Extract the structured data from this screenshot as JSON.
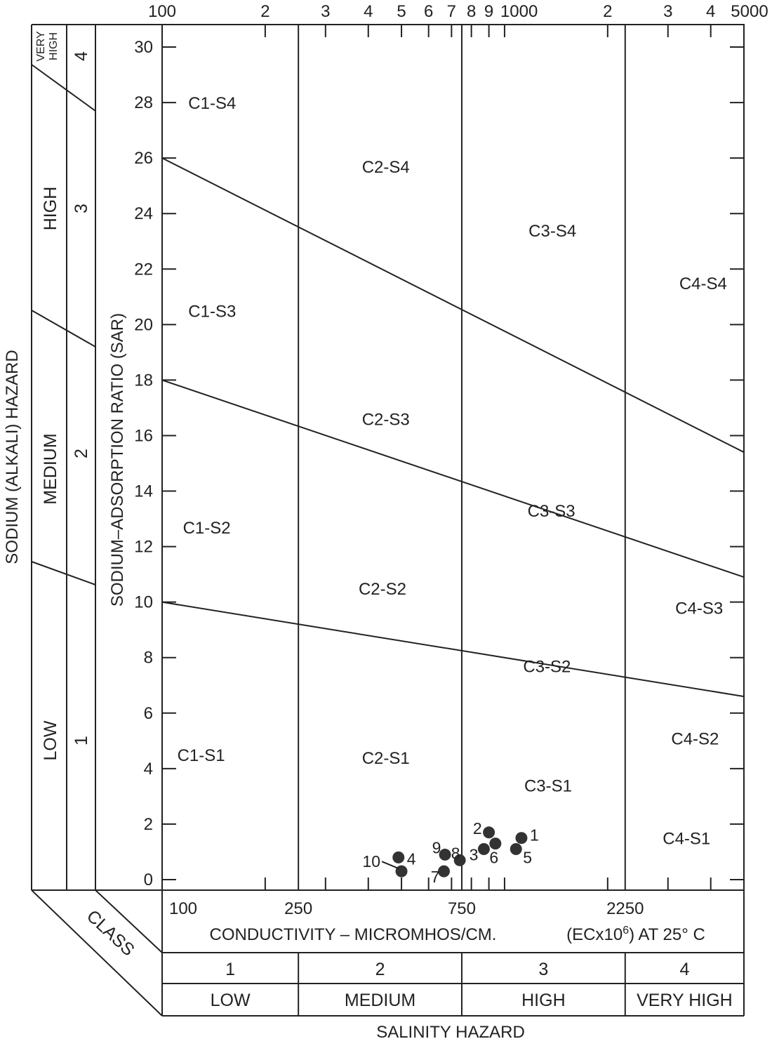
{
  "chart_data": {
    "type": "scatter",
    "x_scale": "log",
    "xlim": [
      100,
      5000
    ],
    "ylim": [
      0,
      31.5
    ],
    "top_ticks": [
      {
        "v": 100,
        "label": "100"
      },
      {
        "v": 200,
        "label": "2"
      },
      {
        "v": 300,
        "label": "3"
      },
      {
        "v": 400,
        "label": "4"
      },
      {
        "v": 500,
        "label": "5"
      },
      {
        "v": 600,
        "label": "6"
      },
      {
        "v": 700,
        "label": "7"
      },
      {
        "v": 800,
        "label": "8"
      },
      {
        "v": 900,
        "label": "9"
      },
      {
        "v": 1000,
        "label": "1000"
      },
      {
        "v": 2000,
        "label": "2"
      },
      {
        "v": 3000,
        "label": "3"
      },
      {
        "v": 4000,
        "label": "4"
      },
      {
        "v": 5000,
        "label": "5000"
      }
    ],
    "bottom_ticks": [
      {
        "v": 100,
        "label": "100"
      },
      {
        "v": 250,
        "label": "250"
      },
      {
        "v": 750,
        "label": "750"
      },
      {
        "v": 2250,
        "label": "2250"
      }
    ],
    "y_ticks": [
      0,
      2,
      4,
      6,
      8,
      10,
      12,
      14,
      16,
      18,
      20,
      22,
      24,
      26,
      28,
      30
    ],
    "ylabel": "SODIUM–ADSORPTION RATIO (SAR)",
    "xlabel": "CONDUCTIVITY – MICROMHOS/CM.",
    "xlabel_right_pre": "(ECx10",
    "xlabel_right_sup": "6",
    "xlabel_right_post": ") AT 25° C",
    "class_label": "CLASS",
    "salinity_hazard_label": "SALINITY HAZARD",
    "sodium_hazard_label": "SODIUM (ALKALI) HAZARD",
    "salinity_classes": [
      {
        "num": "1",
        "name": "LOW",
        "from": 100,
        "to": 250
      },
      {
        "num": "2",
        "name": "MEDIUM",
        "from": 250,
        "to": 750
      },
      {
        "num": "3",
        "name": "HIGH",
        "from": 750,
        "to": 2250
      },
      {
        "num": "4",
        "name": "VERY HIGH",
        "from": 2250,
        "to": 5000
      }
    ],
    "sodium_classes": [
      {
        "num": "1",
        "name": "LOW"
      },
      {
        "num": "2",
        "name": "MEDIUM"
      },
      {
        "num": "3",
        "name": "HIGH"
      },
      {
        "num": "4",
        "name_line1": "VERY",
        "name_line2": "HIGH"
      }
    ],
    "boundary_lines": [
      {
        "from": [
          100,
          10
        ],
        "to": [
          5000,
          6.6
        ]
      },
      {
        "from": [
          100,
          18
        ],
        "to": [
          5000,
          10.9
        ]
      },
      {
        "from": [
          100,
          26
        ],
        "to": [
          5000,
          15.4
        ]
      }
    ],
    "regions": [
      {
        "label": "C1-S4",
        "x": 140,
        "y": 28
      },
      {
        "label": "C2-S4",
        "x": 450,
        "y": 25.7
      },
      {
        "label": "C3-S4",
        "x": 1380,
        "y": 23.4
      },
      {
        "label": "C1-S3",
        "x": 140,
        "y": 20.5
      },
      {
        "label": "C4-S4",
        "x": 3800,
        "y": 21.5
      },
      {
        "label": "C2-S3",
        "x": 450,
        "y": 16.6
      },
      {
        "label": "C3-S3",
        "x": 1370,
        "y": 13.3
      },
      {
        "label": "C1-S2",
        "x": 135,
        "y": 12.7
      },
      {
        "label": "C2-S2",
        "x": 440,
        "y": 10.5
      },
      {
        "label": "C4-S3",
        "x": 3700,
        "y": 9.8
      },
      {
        "label": "C3-S2",
        "x": 1330,
        "y": 7.7
      },
      {
        "label": "C4-S2",
        "x": 3600,
        "y": 5.1
      },
      {
        "label": "C1-S1",
        "x": 130,
        "y": 4.5
      },
      {
        "label": "C2-S1",
        "x": 450,
        "y": 4.4
      },
      {
        "label": "C3-S1",
        "x": 1340,
        "y": 3.4
      },
      {
        "label": "C4-S1",
        "x": 3400,
        "y": 1.5
      }
    ],
    "points": [
      {
        "label": "1",
        "x": 1120,
        "y": 1.5
      },
      {
        "label": "2",
        "x": 900,
        "y": 1.7
      },
      {
        "label": "3",
        "x": 870,
        "y": 1.1
      },
      {
        "label": "4",
        "x": 490,
        "y": 0.8
      },
      {
        "label": "5",
        "x": 1080,
        "y": 1.1
      },
      {
        "label": "6",
        "x": 940,
        "y": 1.3
      },
      {
        "label": "7",
        "x": 665,
        "y": 0.3
      },
      {
        "label": "8",
        "x": 740,
        "y": 0.7
      },
      {
        "label": "9",
        "x": 670,
        "y": 0.9
      },
      {
        "label": "10",
        "x": 500,
        "y": 0.3
      }
    ]
  }
}
